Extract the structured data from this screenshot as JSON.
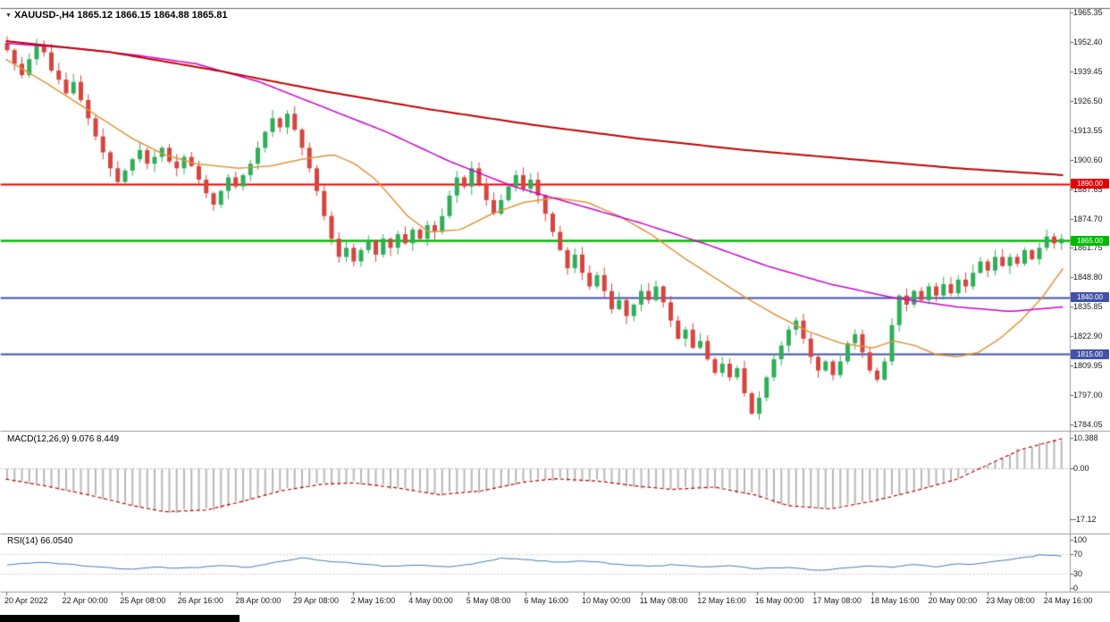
{
  "header": {
    "title_text": "XAUUSD-,H4 1865.12 1866.15 1864.88 1865.81"
  },
  "indicators": {
    "macd_label": "MACD(12,26,9) 9.076 8.449",
    "rsi_label": "RSI(14) 66.0540"
  },
  "price_axis": {
    "labels": [
      "1965.35",
      "1952.40",
      "1939.45",
      "1926.50",
      "1913.55",
      "1900.60",
      "1887.65",
      "1874.70",
      "1861.75",
      "1848.80",
      "1835.85",
      "1822.90",
      "1809.95",
      "1797.00",
      "1784.05"
    ]
  },
  "macd_axis": {
    "labels": [
      "10.388",
      "0.00",
      "-17.12"
    ]
  },
  "rsi_axis": {
    "labels": [
      "100",
      "70",
      "30",
      "0"
    ]
  },
  "time_axis": {
    "labels": [
      "20 Apr 2022",
      "22 Apr 00:00",
      "25 Apr 08:00",
      "26 Apr 16:00",
      "28 Apr 00:00",
      "29 Apr 08:00",
      "2 May 16:00",
      "4 May 00:00",
      "5 May 08:00",
      "6 May 16:00",
      "10 May 00:00",
      "11 May 08:00",
      "12 May 16:00",
      "16 May 00:00",
      "17 May 08:00",
      "18 May 16:00",
      "20 May 00:00",
      "23 May 08:00",
      "24 May 16:00"
    ]
  },
  "colors": {
    "up": "#2fae58",
    "down": "#d6453f",
    "ma_slow": "#c00000",
    "ma_mid": "#cc00cc",
    "ma_fast": "#e0953c",
    "macd_hist": "#b8b8b8",
    "macd_signal": "#c00000",
    "rsi_line": "#3f7cba",
    "level_red": "#e60000",
    "level_green": "#00bb00",
    "level_blue": "#4152a8"
  },
  "chart_data": [
    {
      "type": "candlestick",
      "title": "XAUUSD-",
      "timeframe": "H4",
      "last_ohlc": {
        "open": 1865.12,
        "high": 1866.15,
        "low": 1864.88,
        "close": 1865.81
      },
      "ylim": [
        1784.05,
        1965.35
      ],
      "price_step": 12.95,
      "x_first_label": "20 Apr 2022",
      "x_last_label": "24 May 16:00",
      "closes": [
        1949,
        1943,
        1938,
        1945,
        1951,
        1948,
        1940,
        1936,
        1930,
        1935,
        1927,
        1919,
        1911,
        1904,
        1897,
        1891,
        1896,
        1901,
        1905,
        1899,
        1902,
        1906,
        1900,
        1897,
        1902,
        1898,
        1892,
        1886,
        1881,
        1887,
        1893,
        1889,
        1894,
        1899,
        1906,
        1913,
        1919,
        1915,
        1921,
        1914,
        1906,
        1897,
        1887,
        1876,
        1866,
        1858,
        1862,
        1856,
        1861,
        1865,
        1859,
        1866,
        1862,
        1868,
        1864,
        1870,
        1866,
        1872,
        1869,
        1876,
        1885,
        1893,
        1889,
        1897,
        1890,
        1883,
        1877,
        1883,
        1889,
        1894,
        1888,
        1892,
        1885,
        1877,
        1869,
        1861,
        1853,
        1859,
        1851,
        1845,
        1850,
        1843,
        1835,
        1839,
        1832,
        1837,
        1843,
        1839,
        1845,
        1838,
        1830,
        1822,
        1826,
        1818,
        1821,
        1813,
        1807,
        1811,
        1805,
        1809,
        1798,
        1789,
        1796,
        1805,
        1813,
        1819,
        1826,
        1830,
        1822,
        1814,
        1808,
        1812,
        1806,
        1812,
        1820,
        1824,
        1816,
        1808,
        1804,
        1812,
        1828,
        1841,
        1837,
        1843,
        1839,
        1845,
        1841,
        1846,
        1842,
        1848,
        1845,
        1851,
        1856,
        1852,
        1858,
        1854,
        1858,
        1855,
        1861,
        1857,
        1862,
        1867,
        1864,
        1866
      ],
      "levels": [
        {
          "value": 1890,
          "label": "1890.00",
          "color": "#e60000"
        },
        {
          "value": 1865,
          "label": "1865.00",
          "color": "#00bb00"
        },
        {
          "value": 1840,
          "label": "1840.00",
          "color": "#4152a8"
        },
        {
          "value": 1815,
          "label": "1815.00",
          "color": "#4152a8"
        }
      ],
      "overlays": [
        {
          "name": "ma-slow-red",
          "color": "#c00000",
          "width": 2,
          "points": [
            [
              0,
              1953
            ],
            [
              0.1,
              1948
            ],
            [
              0.2,
              1940
            ],
            [
              0.3,
              1931
            ],
            [
              0.4,
              1923
            ],
            [
              0.5,
              1916
            ],
            [
              0.6,
              1910
            ],
            [
              0.7,
              1905
            ],
            [
              0.8,
              1901
            ],
            [
              0.9,
              1897
            ],
            [
              1,
              1894
            ]
          ]
        },
        {
          "name": "ma-mid-magenta",
          "color": "#cc00cc",
          "width": 1.5,
          "points": [
            [
              0,
              1952
            ],
            [
              0.06,
              1950
            ],
            [
              0.12,
              1947
            ],
            [
              0.18,
              1943
            ],
            [
              0.24,
              1935
            ],
            [
              0.3,
              1924
            ],
            [
              0.36,
              1913
            ],
            [
              0.42,
              1900
            ],
            [
              0.48,
              1889
            ],
            [
              0.54,
              1881
            ],
            [
              0.6,
              1873
            ],
            [
              0.66,
              1864
            ],
            [
              0.72,
              1854
            ],
            [
              0.78,
              1846
            ],
            [
              0.84,
              1840
            ],
            [
              0.9,
              1836
            ],
            [
              0.95,
              1834
            ],
            [
              1,
              1836
            ]
          ]
        },
        {
          "name": "ma-fast-orange",
          "color": "#e0953c",
          "width": 1.5,
          "points": [
            [
              0,
              1945
            ],
            [
              0.04,
              1934
            ],
            [
              0.08,
              1922
            ],
            [
              0.12,
              1910
            ],
            [
              0.15,
              1903
            ],
            [
              0.18,
              1899
            ],
            [
              0.22,
              1897
            ],
            [
              0.25,
              1898
            ],
            [
              0.28,
              1901
            ],
            [
              0.31,
              1903
            ],
            [
              0.33,
              1899
            ],
            [
              0.35,
              1892
            ],
            [
              0.38,
              1876
            ],
            [
              0.4,
              1869
            ],
            [
              0.43,
              1870
            ],
            [
              0.46,
              1877
            ],
            [
              0.49,
              1882
            ],
            [
              0.52,
              1884
            ],
            [
              0.55,
              1882
            ],
            [
              0.58,
              1876
            ],
            [
              0.61,
              1868
            ],
            [
              0.64,
              1858
            ],
            [
              0.67,
              1849
            ],
            [
              0.7,
              1840
            ],
            [
              0.73,
              1832
            ],
            [
              0.76,
              1825
            ],
            [
              0.79,
              1820
            ],
            [
              0.82,
              1818
            ],
            [
              0.84,
              1821
            ],
            [
              0.86,
              1819
            ],
            [
              0.88,
              1815
            ],
            [
              0.9,
              1814
            ],
            [
              0.92,
              1816
            ],
            [
              0.94,
              1822
            ],
            [
              0.96,
              1830
            ],
            [
              0.98,
              1840
            ],
            [
              1,
              1853
            ]
          ]
        }
      ]
    },
    {
      "type": "bar",
      "name": "MACD",
      "label": "MACD(12,26,9) 9.076 8.449",
      "params": "12,26,9",
      "values_shown": [
        9.076,
        8.449
      ],
      "ylim": [
        -17.12,
        10.388
      ],
      "yticks": [
        10.388,
        0,
        -17.12
      ],
      "anchors": [
        [
          0,
          -3.5
        ],
        [
          0.04,
          -6
        ],
        [
          0.08,
          -9
        ],
        [
          0.12,
          -12.5
        ],
        [
          0.15,
          -14.6
        ],
        [
          0.19,
          -14
        ],
        [
          0.23,
          -10.5
        ],
        [
          0.26,
          -7.5
        ],
        [
          0.3,
          -5.2
        ],
        [
          0.33,
          -4.8
        ],
        [
          0.37,
          -6.5
        ],
        [
          0.41,
          -8.8
        ],
        [
          0.45,
          -7.5
        ],
        [
          0.49,
          -4.5
        ],
        [
          0.52,
          -3.4
        ],
        [
          0.56,
          -4.2
        ],
        [
          0.6,
          -6
        ],
        [
          0.63,
          -7
        ],
        [
          0.67,
          -6.2
        ],
        [
          0.71,
          -9
        ],
        [
          0.74,
          -12.5
        ],
        [
          0.78,
          -13.6
        ],
        [
          0.82,
          -11
        ],
        [
          0.86,
          -7.5
        ],
        [
          0.9,
          -3.5
        ],
        [
          0.93,
          1.5
        ],
        [
          0.96,
          6.5
        ],
        [
          1,
          10.3
        ]
      ]
    },
    {
      "type": "line",
      "name": "RSI",
      "label": "RSI(14) 66.0540",
      "period": 14,
      "current": 66.054,
      "ylim": [
        0,
        100
      ],
      "yticks": [
        100,
        70,
        30,
        0
      ],
      "levels": [
        70,
        30
      ],
      "anchors": [
        [
          0,
          48
        ],
        [
          0.03,
          55
        ],
        [
          0.06,
          50
        ],
        [
          0.09,
          44
        ],
        [
          0.12,
          40
        ],
        [
          0.14,
          44
        ],
        [
          0.17,
          42
        ],
        [
          0.2,
          47
        ],
        [
          0.23,
          44
        ],
        [
          0.26,
          57
        ],
        [
          0.28,
          63
        ],
        [
          0.3,
          58
        ],
        [
          0.33,
          52
        ],
        [
          0.36,
          46
        ],
        [
          0.39,
          49
        ],
        [
          0.42,
          45
        ],
        [
          0.44,
          50
        ],
        [
          0.47,
          63
        ],
        [
          0.49,
          60
        ],
        [
          0.52,
          55
        ],
        [
          0.55,
          57
        ],
        [
          0.58,
          50
        ],
        [
          0.61,
          46
        ],
        [
          0.63,
          49
        ],
        [
          0.66,
          44
        ],
        [
          0.69,
          47
        ],
        [
          0.71,
          41
        ],
        [
          0.74,
          44
        ],
        [
          0.77,
          37
        ],
        [
          0.79,
          42
        ],
        [
          0.82,
          47
        ],
        [
          0.84,
          43
        ],
        [
          0.86,
          50
        ],
        [
          0.88,
          45
        ],
        [
          0.9,
          52
        ],
        [
          0.92,
          50
        ],
        [
          0.94,
          58
        ],
        [
          0.96,
          62
        ],
        [
          0.98,
          70
        ],
        [
          1,
          67
        ]
      ]
    }
  ]
}
